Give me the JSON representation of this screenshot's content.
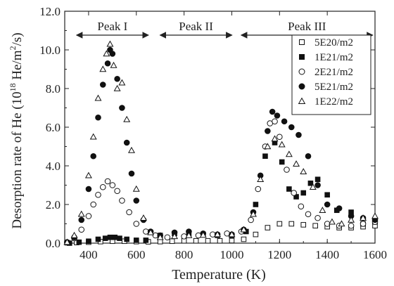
{
  "chart_data": {
    "type": "scatter",
    "title": "",
    "xlabel": "Temperature (K)",
    "ylabel_main": "Desorption rate of He (10",
    "ylabel_exp": "18",
    "ylabel_mid": " He/m",
    "ylabel_exp2": "2",
    "ylabel_end": "/s)",
    "xlim": [
      300,
      1600
    ],
    "ylim": [
      0,
      12
    ],
    "xticks": [
      400,
      600,
      800,
      1000,
      1200,
      1400,
      1600
    ],
    "yticks": [
      0.0,
      2.0,
      4.0,
      6.0,
      8.0,
      10.0,
      12.0
    ],
    "grid": false,
    "legend_position": "top-right",
    "annotations": [
      {
        "label": "Peak I",
        "x_start": 350,
        "x_end": 650
      },
      {
        "label": "Peak II",
        "x_start": 700,
        "x_end": 1000
      },
      {
        "label": "Peak III",
        "x_start": 1040,
        "x_end": 1590
      }
    ],
    "series": [
      {
        "name": "5E20/m2",
        "marker": "square-open",
        "x": [
          310,
          350,
          400,
          450,
          500,
          550,
          600,
          650,
          700,
          750,
          800,
          850,
          900,
          950,
          1000,
          1050,
          1100,
          1150,
          1200,
          1250,
          1300,
          1350,
          1400,
          1450,
          1500,
          1550,
          1600
        ],
        "y": [
          0.02,
          0.03,
          0.05,
          0.08,
          0.1,
          0.1,
          0.08,
          0.07,
          0.08,
          0.1,
          0.12,
          0.12,
          0.12,
          0.12,
          0.13,
          0.2,
          0.45,
          0.8,
          1.0,
          1.0,
          0.95,
          0.9,
          0.85,
          0.8,
          0.8,
          0.85,
          0.9
        ]
      },
      {
        "name": "1E21/m2",
        "marker": "square-filled",
        "x": [
          320,
          360,
          400,
          440,
          470,
          490,
          510,
          530,
          560,
          600,
          640,
          700,
          760,
          820,
          880,
          940,
          1000,
          1060,
          1100,
          1140,
          1180,
          1210,
          1240,
          1270,
          1300,
          1330,
          1360,
          1400,
          1440,
          1500,
          1550,
          1600
        ],
        "y": [
          0.0,
          0.05,
          0.1,
          0.2,
          0.25,
          0.3,
          0.3,
          0.25,
          0.2,
          0.15,
          0.15,
          0.4,
          0.5,
          0.5,
          0.45,
          0.4,
          0.4,
          0.6,
          2.0,
          4.5,
          5.2,
          4.2,
          2.8,
          2.4,
          2.6,
          3.1,
          3.3,
          2.5,
          1.7,
          1.6,
          1.0,
          1.1
        ]
      },
      {
        "name": "2E21/m2",
        "marker": "circle-open",
        "x": [
          310,
          340,
          370,
          400,
          420,
          440,
          460,
          480,
          500,
          520,
          540,
          570,
          600,
          640,
          680,
          730,
          800,
          860,
          920,
          980,
          1040,
          1080,
          1110,
          1140,
          1160,
          1180,
          1200,
          1230,
          1260,
          1290,
          1320,
          1360,
          1400,
          1450,
          1500,
          1550,
          1600
        ],
        "y": [
          0.05,
          0.25,
          0.7,
          1.4,
          2.0,
          2.5,
          2.9,
          3.2,
          3.0,
          2.7,
          2.2,
          1.6,
          1.0,
          0.6,
          0.4,
          0.3,
          0.35,
          0.4,
          0.45,
          0.5,
          0.6,
          1.2,
          2.8,
          5.0,
          6.2,
          6.3,
          5.5,
          3.8,
          2.6,
          1.9,
          1.5,
          1.3,
          1.0,
          0.9,
          0.9,
          1.0,
          1.1
        ]
      },
      {
        "name": "5E21/m2",
        "marker": "circle-filled",
        "x": [
          310,
          340,
          370,
          400,
          420,
          440,
          460,
          480,
          490,
          500,
          520,
          540,
          560,
          580,
          600,
          630,
          660,
          700,
          760,
          820,
          880,
          940,
          1000,
          1050,
          1090,
          1120,
          1150,
          1170,
          1190,
          1220,
          1250,
          1280,
          1320,
          1360,
          1400,
          1450,
          1500,
          1550,
          1600
        ],
        "y": [
          0.05,
          0.3,
          1.2,
          2.8,
          4.5,
          6.5,
          8.2,
          9.3,
          10.0,
          9.8,
          8.5,
          7.0,
          5.2,
          3.6,
          2.2,
          1.2,
          0.6,
          0.4,
          0.55,
          0.6,
          0.5,
          0.45,
          0.45,
          0.7,
          1.6,
          3.5,
          5.8,
          6.8,
          6.6,
          6.3,
          6.0,
          5.6,
          4.5,
          3.0,
          2.0,
          1.8,
          1.4,
          1.3,
          1.2
        ]
      },
      {
        "name": "1E22/m2",
        "marker": "triangle-open",
        "x": [
          310,
          340,
          370,
          400,
          420,
          440,
          460,
          475,
          490,
          505,
          520,
          540,
          560,
          580,
          600,
          630,
          660,
          700,
          760,
          820,
          880,
          940,
          1000,
          1050,
          1090,
          1120,
          1150,
          1180,
          1210,
          1240,
          1270,
          1300,
          1340,
          1380,
          1420,
          1460,
          1500,
          1550,
          1600
        ],
        "y": [
          0.05,
          0.4,
          1.5,
          3.5,
          5.5,
          7.5,
          9.0,
          9.8,
          10.3,
          9.2,
          8.0,
          8.3,
          6.4,
          4.8,
          2.8,
          1.3,
          0.55,
          0.3,
          0.35,
          0.4,
          0.42,
          0.45,
          0.45,
          0.7,
          1.5,
          3.3,
          5.0,
          5.4,
          5.1,
          4.6,
          4.1,
          3.7,
          2.9,
          1.7,
          1.1,
          1.0,
          1.2,
          1.3,
          1.4
        ]
      }
    ]
  }
}
